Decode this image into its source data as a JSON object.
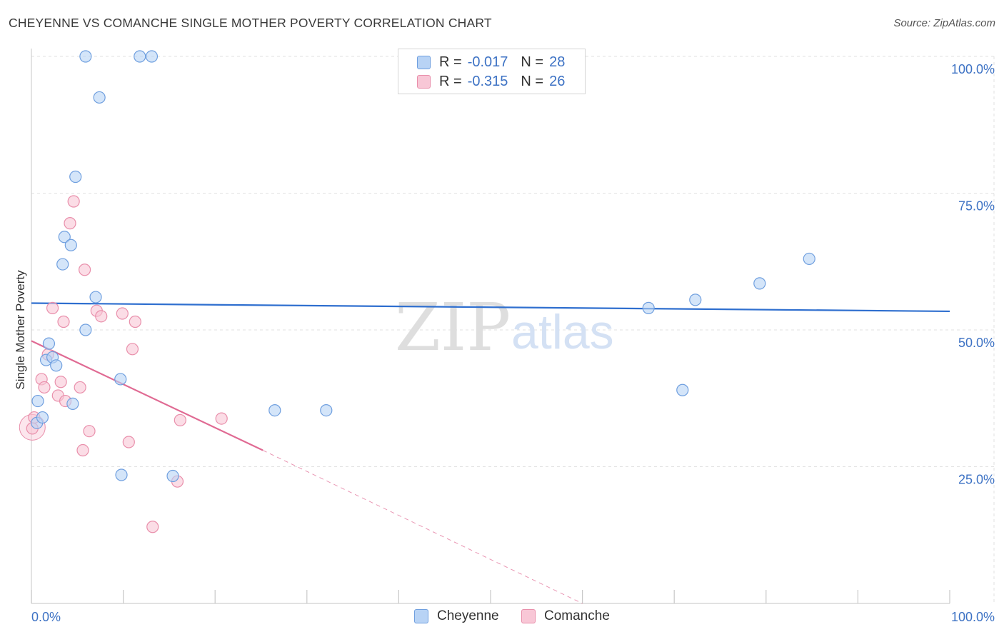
{
  "title": "CHEYENNE VS COMANCHE SINGLE MOTHER POVERTY CORRELATION CHART",
  "source": "Source: ZipAtlas.com",
  "watermark": {
    "zip": "ZIP",
    "atlas": "atlas"
  },
  "colors": {
    "cheyenne_fill": "#b8d3f5",
    "cheyenne_stroke": "#6f9fdf",
    "cheyenne_line": "#2f6fcf",
    "comanche_fill": "#f8c7d6",
    "comanche_stroke": "#e98fab",
    "comanche_line": "#e06a93",
    "tick_label": "#3d72c4",
    "grid": "#e2e2e2"
  },
  "legend": {
    "rows": [
      {
        "r_key": "R =",
        "r_value": "-0.017",
        "n_key": "N =",
        "n_value": "28"
      },
      {
        "r_key": "R =",
        "r_value": "-0.315",
        "n_key": "N =",
        "n_value": "26"
      }
    ]
  },
  "bottom_legend": {
    "cheyenne": "Cheyenne",
    "comanche": "Comanche"
  },
  "chart_data": {
    "type": "scatter",
    "title": "CHEYENNE VS COMANCHE SINGLE MOTHER POVERTY CORRELATION CHART",
    "xlabel": "",
    "ylabel": "Single Mother Poverty",
    "xlim": [
      0,
      100
    ],
    "ylim": [
      0,
      100
    ],
    "x_tick_labels": [
      "0.0%",
      "100.0%"
    ],
    "y_ticks": [
      {
        "value": 25,
        "label": "25.0%"
      },
      {
        "value": 50,
        "label": "50.0%"
      },
      {
        "value": 75,
        "label": "75.0%"
      },
      {
        "value": 100,
        "label": "100.0%"
      }
    ],
    "series": [
      {
        "name": "Cheyenne",
        "r": -0.017,
        "n": 28,
        "trend": {
          "x": [
            0,
            100
          ],
          "y": [
            54.9,
            53.4
          ]
        },
        "points": [
          {
            "x": 0.6,
            "y": 33.0
          },
          {
            "x": 0.7,
            "y": 37.0
          },
          {
            "x": 1.2,
            "y": 34.0
          },
          {
            "x": 1.6,
            "y": 44.5
          },
          {
            "x": 1.9,
            "y": 47.5
          },
          {
            "x": 2.3,
            "y": 45.0
          },
          {
            "x": 2.7,
            "y": 43.5
          },
          {
            "x": 3.4,
            "y": 62.0
          },
          {
            "x": 3.6,
            "y": 67.0
          },
          {
            "x": 4.3,
            "y": 65.5
          },
          {
            "x": 4.5,
            "y": 36.5
          },
          {
            "x": 4.8,
            "y": 78.0
          },
          {
            "x": 5.9,
            "y": 100.0
          },
          {
            "x": 5.9,
            "y": 50.0
          },
          {
            "x": 7.0,
            "y": 56.0
          },
          {
            "x": 7.4,
            "y": 92.5
          },
          {
            "x": 9.7,
            "y": 41.0
          },
          {
            "x": 9.8,
            "y": 23.5
          },
          {
            "x": 11.8,
            "y": 100.0
          },
          {
            "x": 13.1,
            "y": 100.0
          },
          {
            "x": 15.4,
            "y": 23.3
          },
          {
            "x": 26.5,
            "y": 35.3
          },
          {
            "x": 32.1,
            "y": 35.3
          },
          {
            "x": 67.2,
            "y": 54.0
          },
          {
            "x": 70.9,
            "y": 39.0
          },
          {
            "x": 72.3,
            "y": 55.5
          },
          {
            "x": 79.3,
            "y": 58.5
          },
          {
            "x": 84.7,
            "y": 63.0
          }
        ]
      },
      {
        "name": "Comanche",
        "r": -0.315,
        "n": 26,
        "trend": {
          "x": [
            0,
            25.2
          ],
          "y": [
            48.0,
            28.0
          ]
        },
        "trend_dashed": {
          "x": [
            25.2,
            60
          ],
          "y": [
            28.0,
            0
          ]
        },
        "points": [
          {
            "x": 0.1,
            "y": 32.0
          },
          {
            "x": 0.3,
            "y": 34.0
          },
          {
            "x": 1.1,
            "y": 41.0
          },
          {
            "x": 1.4,
            "y": 39.5
          },
          {
            "x": 1.8,
            "y": 45.5
          },
          {
            "x": 2.3,
            "y": 54.0
          },
          {
            "x": 2.9,
            "y": 38.0
          },
          {
            "x": 3.2,
            "y": 40.5
          },
          {
            "x": 3.5,
            "y": 51.5
          },
          {
            "x": 3.7,
            "y": 37.0
          },
          {
            "x": 4.2,
            "y": 69.5
          },
          {
            "x": 4.6,
            "y": 73.5
          },
          {
            "x": 5.3,
            "y": 39.5
          },
          {
            "x": 5.6,
            "y": 28.0
          },
          {
            "x": 5.8,
            "y": 61.0
          },
          {
            "x": 6.3,
            "y": 31.5
          },
          {
            "x": 7.1,
            "y": 53.5
          },
          {
            "x": 7.6,
            "y": 52.5
          },
          {
            "x": 9.9,
            "y": 53.0
          },
          {
            "x": 10.6,
            "y": 29.5
          },
          {
            "x": 11.0,
            "y": 46.5
          },
          {
            "x": 11.3,
            "y": 51.5
          },
          {
            "x": 13.2,
            "y": 14.0
          },
          {
            "x": 15.9,
            "y": 22.3
          },
          {
            "x": 16.2,
            "y": 33.5
          },
          {
            "x": 20.7,
            "y": 33.8
          }
        ]
      }
    ]
  }
}
